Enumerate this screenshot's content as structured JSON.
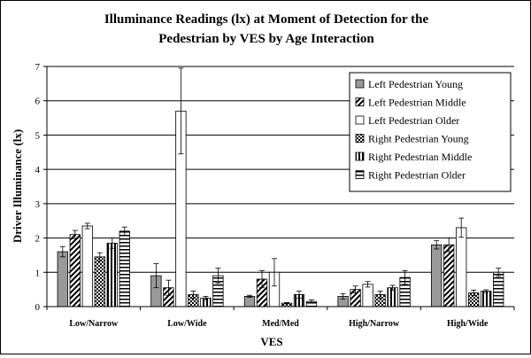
{
  "chart_data": {
    "type": "bar",
    "title": "Illuminance Readings (lx) at Moment of Detection for the Pedestrian by VES by Age Interaction",
    "title_lines": [
      "Illuminance Readings (lx) at Moment of Detection for the",
      "Pedestrian by VES by Age Interaction"
    ],
    "xlabel": "VES",
    "ylabel": "Driver Illuminance (lx)",
    "ylim": [
      0,
      7
    ],
    "yticks": [
      "0",
      "1",
      "2",
      "3",
      "4",
      "5",
      "6",
      "7"
    ],
    "grid": true,
    "legend_position": "top-right",
    "categories": [
      "Low/Narrow",
      "Low/Wide",
      "Med/Med",
      "High/Narrow",
      "High/Wide"
    ],
    "series": [
      {
        "name": "Left Pedestrian Young",
        "pattern": "solid-gray",
        "values": [
          1.6,
          0.9,
          0.3,
          0.3,
          1.8
        ],
        "errors": [
          0.15,
          0.35,
          0.03,
          0.08,
          0.12
        ]
      },
      {
        "name": "Left Pedestrian Middle",
        "pattern": "diagonal",
        "values": [
          2.1,
          0.55,
          0.8,
          0.5,
          1.8
        ],
        "errors": [
          0.12,
          0.22,
          0.25,
          0.1,
          0.2
        ]
      },
      {
        "name": "Left Pedestrian Older",
        "pattern": "white",
        "values": [
          2.35,
          5.7,
          1.0,
          0.65,
          2.3
        ],
        "errors": [
          0.08,
          1.25,
          0.4,
          0.08,
          0.28
        ]
      },
      {
        "name": "Right Pedestrian Young",
        "pattern": "checker",
        "values": [
          1.45,
          0.35,
          0.1,
          0.35,
          0.4
        ],
        "errors": [
          0.12,
          0.1,
          0.02,
          0.1,
          0.08
        ]
      },
      {
        "name": "Right Pedestrian Middle",
        "pattern": "vertical",
        "values": [
          1.85,
          0.25,
          0.35,
          0.55,
          0.45
        ],
        "errors": [
          0.15,
          0.05,
          0.1,
          0.07,
          0.04
        ]
      },
      {
        "name": "Right Pedestrian Older",
        "pattern": "horizontal",
        "values": [
          2.2,
          0.9,
          0.15,
          0.85,
          1.0
        ],
        "errors": [
          0.12,
          0.22,
          0.05,
          0.2,
          0.12
        ]
      }
    ]
  }
}
